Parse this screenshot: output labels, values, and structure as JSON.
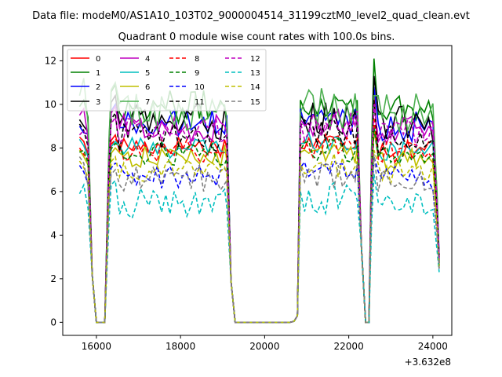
{
  "figure": {
    "suptitle": "Data file: modeM0/AS1A10_103T02_9000004514_31199cztM0_level2_quad_clean.evt",
    "title": "Quadrant 0 module wise count rates with 100.0s bins.",
    "offset_label": "+3.632e8"
  },
  "chart_data": {
    "type": "line",
    "title": "Quadrant 0 module wise count rates with 100.0s bins.",
    "xlabel": "",
    "ylabel": "",
    "x_offset": 363200000,
    "xlim": [
      15200,
      24450
    ],
    "ylim": [
      -0.6,
      12.7
    ],
    "xticks": [
      16000,
      18000,
      20000,
      22000,
      24000
    ],
    "yticks": [
      0,
      2,
      4,
      6,
      8,
      10,
      12
    ],
    "xtick_labels": [
      "16000",
      "18000",
      "20000",
      "22000",
      "24000"
    ],
    "ytick_labels": [
      "0",
      "2",
      "4",
      "6",
      "8",
      "10",
      "12"
    ],
    "grid": false,
    "legend_position": "top-left",
    "legend_columns": 4,
    "series": [
      {
        "name": "0",
        "color": "#ff0000",
        "dash": "solid",
        "base": 8.1,
        "min_val": 7.6,
        "max_val": 8.6,
        "segment_points": {
          "seg1": [
            [
              15600,
              8.5
            ],
            [
              15700,
              8.3
            ],
            [
              16450,
              8.6
            ],
            [
              19100,
              8.0
            ]
          ],
          "seg2": [
            [
              20850,
              8.0
            ],
            [
              22200,
              8.4
            ]
          ],
          "seg3": [
            [
              22600,
              10.5
            ],
            [
              24150,
              3.0
            ]
          ]
        }
      },
      {
        "name": "1",
        "color": "#008000",
        "dash": "solid",
        "base": 9.9,
        "min_val": 9.5,
        "max_val": 11.0,
        "segment_points": {
          "seg1": [
            [
              15600,
              9.9
            ],
            [
              15700,
              10.2
            ],
            [
              16450,
              10.9
            ],
            [
              19100,
              9.4
            ]
          ],
          "seg2": [
            [
              20850,
              10.2
            ],
            [
              22200,
              10.2
            ]
          ],
          "seg3": [
            [
              22600,
              12.1
            ],
            [
              24150,
              2.9
            ]
          ]
        }
      },
      {
        "name": "2",
        "color": "#0000ff",
        "dash": "solid",
        "base": 9.1,
        "min_val": 8.6,
        "max_val": 10.0,
        "segment_points": {
          "seg1": [
            [
              15600,
              9.0
            ],
            [
              15700,
              8.7
            ],
            [
              16450,
              10.0
            ],
            [
              19100,
              9.5
            ]
          ],
          "seg2": [
            [
              20850,
              9.8
            ],
            [
              22200,
              9.2
            ]
          ],
          "seg3": [
            [
              22600,
              10.8
            ],
            [
              24150,
              3.1
            ]
          ]
        }
      },
      {
        "name": "3",
        "color": "#000000",
        "dash": "solid",
        "base": 9.2,
        "min_val": 8.8,
        "max_val": 10.5,
        "segment_points": {
          "seg1": [
            [
              15600,
              9.3
            ],
            [
              15700,
              9.0
            ],
            [
              16450,
              10.4
            ],
            [
              19100,
              9.1
            ]
          ],
          "seg2": [
            [
              20850,
              9.5
            ],
            [
              22200,
              9.0
            ]
          ],
          "seg3": [
            [
              22600,
              11.3
            ],
            [
              24150,
              2.6
            ]
          ]
        }
      },
      {
        "name": "4",
        "color": "#bf00bf",
        "dash": "solid",
        "base": 8.9,
        "min_val": 8.4,
        "max_val": 9.8,
        "segment_points": {
          "seg1": [
            [
              15600,
              9.5
            ],
            [
              15700,
              9.8
            ],
            [
              16450,
              9.9
            ],
            [
              19100,
              8.7
            ]
          ],
          "seg2": [
            [
              20850,
              9.3
            ],
            [
              22200,
              9.4
            ]
          ],
          "seg3": [
            [
              22600,
              10.1
            ],
            [
              24150,
              3.0
            ]
          ]
        }
      },
      {
        "name": "5",
        "color": "#00bfbf",
        "dash": "solid",
        "base": 8.0,
        "min_val": 7.5,
        "max_val": 8.5,
        "segment_points": {
          "seg1": [
            [
              15600,
              8.4
            ],
            [
              15700,
              8.1
            ],
            [
              16450,
              8.3
            ],
            [
              19100,
              7.8
            ]
          ],
          "seg2": [
            [
              20850,
              8.2
            ],
            [
              22200,
              8.3
            ]
          ],
          "seg3": [
            [
              22600,
              9.0
            ],
            [
              24150,
              2.7
            ]
          ]
        }
      },
      {
        "name": "6",
        "color": "#bfbf00",
        "dash": "solid",
        "base": 7.6,
        "min_val": 7.1,
        "max_val": 8.2,
        "segment_points": {
          "seg1": [
            [
              15600,
              7.9
            ],
            [
              15700,
              7.6
            ],
            [
              16450,
              8.0
            ],
            [
              19100,
              7.4
            ]
          ],
          "seg2": [
            [
              20850,
              7.8
            ],
            [
              22200,
              8.0
            ]
          ],
          "seg3": [
            [
              22600,
              8.8
            ],
            [
              24150,
              2.5
            ]
          ]
        }
      },
      {
        "name": "7",
        "color": "#4caf50",
        "dash": "solid",
        "base": 9.6,
        "min_val": 9.0,
        "max_val": 11.0,
        "segment_points": {
          "seg1": [
            [
              15600,
              10.4
            ],
            [
              15700,
              11.2
            ],
            [
              16450,
              11.0
            ],
            [
              19100,
              9.2
            ]
          ],
          "seg2": [
            [
              20850,
              9.6
            ],
            [
              22200,
              9.6
            ]
          ],
          "seg3": [
            [
              22600,
              10.4
            ],
            [
              24150,
              2.8
            ]
          ]
        }
      },
      {
        "name": "8",
        "color": "#ff0000",
        "dash": "dashed",
        "base": 7.9,
        "min_val": 7.4,
        "max_val": 8.5,
        "segment_points": {
          "seg1": [
            [
              15600,
              8.0
            ],
            [
              15700,
              7.7
            ],
            [
              16450,
              8.4
            ],
            [
              19100,
              7.7
            ]
          ],
          "seg2": [
            [
              20850,
              8.1
            ],
            [
              22200,
              8.5
            ]
          ],
          "seg3": [
            [
              22600,
              9.4
            ],
            [
              24150,
              2.7
            ]
          ]
        }
      },
      {
        "name": "9",
        "color": "#008000",
        "dash": "dashed",
        "base": 7.7,
        "min_val": 7.2,
        "max_val": 8.3,
        "segment_points": {
          "seg1": [
            [
              15600,
              7.8
            ],
            [
              15700,
              7.9
            ],
            [
              16450,
              8.2
            ],
            [
              19100,
              7.5
            ]
          ],
          "seg2": [
            [
              20850,
              7.9
            ],
            [
              22200,
              8.1
            ]
          ],
          "seg3": [
            [
              22600,
              8.9
            ],
            [
              24150,
              2.6
            ]
          ]
        }
      },
      {
        "name": "10",
        "color": "#0000ff",
        "dash": "dashed",
        "base": 6.7,
        "min_val": 6.2,
        "max_val": 7.4,
        "segment_points": {
          "seg1": [
            [
              15600,
              7.2
            ],
            [
              15700,
              6.9
            ],
            [
              16450,
              7.3
            ],
            [
              19100,
              6.9
            ]
          ],
          "seg2": [
            [
              20850,
              7.1
            ],
            [
              22200,
              7.2
            ]
          ],
          "seg3": [
            [
              22600,
              7.6
            ],
            [
              24150,
              2.4
            ]
          ]
        }
      },
      {
        "name": "11",
        "color": "#000000",
        "dash": "dashed",
        "base": 8.5,
        "min_val": 8.0,
        "max_val": 9.3,
        "segment_points": {
          "seg1": [
            [
              15600,
              9.1
            ],
            [
              15700,
              8.8
            ],
            [
              16450,
              9.6
            ],
            [
              19100,
              8.6
            ]
          ],
          "seg2": [
            [
              20850,
              9.0
            ],
            [
              22200,
              9.0
            ]
          ],
          "seg3": [
            [
              22600,
              10.2
            ],
            [
              24150,
              2.9
            ]
          ]
        }
      },
      {
        "name": "12",
        "color": "#bf00bf",
        "dash": "dashed",
        "base": 8.8,
        "min_val": 8.3,
        "max_val": 9.6,
        "segment_points": {
          "seg1": [
            [
              15600,
              8.6
            ],
            [
              15700,
              8.8
            ],
            [
              16450,
              9.4
            ],
            [
              19100,
              8.6
            ]
          ],
          "seg2": [
            [
              20850,
              9.2
            ],
            [
              22200,
              9.7
            ]
          ],
          "seg3": [
            [
              22600,
              10.0
            ],
            [
              24150,
              2.8
            ]
          ]
        }
      },
      {
        "name": "13",
        "color": "#00bfbf",
        "dash": "dashed",
        "base": 5.5,
        "min_val": 4.9,
        "max_val": 6.4,
        "segment_points": {
          "seg1": [
            [
              15600,
              5.9
            ],
            [
              15700,
              6.3
            ],
            [
              16450,
              6.5
            ],
            [
              19100,
              5.3
            ]
          ],
          "seg2": [
            [
              20850,
              6.0
            ],
            [
              22200,
              5.6
            ]
          ],
          "seg3": [
            [
              22600,
              6.8
            ],
            [
              24150,
              2.3
            ]
          ]
        }
      },
      {
        "name": "14",
        "color": "#bfbf00",
        "dash": "dashed",
        "base": 7.0,
        "min_val": 6.5,
        "max_val": 7.6,
        "segment_points": {
          "seg1": [
            [
              15600,
              7.4
            ],
            [
              15700,
              7.1
            ],
            [
              16450,
              7.6
            ],
            [
              19100,
              6.8
            ]
          ],
          "seg2": [
            [
              20850,
              7.3
            ],
            [
              22200,
              7.4
            ]
          ],
          "seg3": [
            [
              22600,
              7.9
            ],
            [
              24150,
              2.4
            ]
          ]
        }
      },
      {
        "name": "15",
        "color": "#808080",
        "dash": "dashed",
        "base": 6.6,
        "min_val": 6.0,
        "max_val": 7.3,
        "segment_points": {
          "seg1": [
            [
              15600,
              7.6
            ],
            [
              15700,
              7.3
            ],
            [
              16450,
              7.0
            ],
            [
              19100,
              6.5
            ]
          ],
          "seg2": [
            [
              20850,
              7.2
            ],
            [
              22200,
              7.3
            ]
          ],
          "seg3": [
            [
              22600,
              7.7
            ],
            [
              24150,
              2.5
            ]
          ]
        }
      }
    ]
  }
}
